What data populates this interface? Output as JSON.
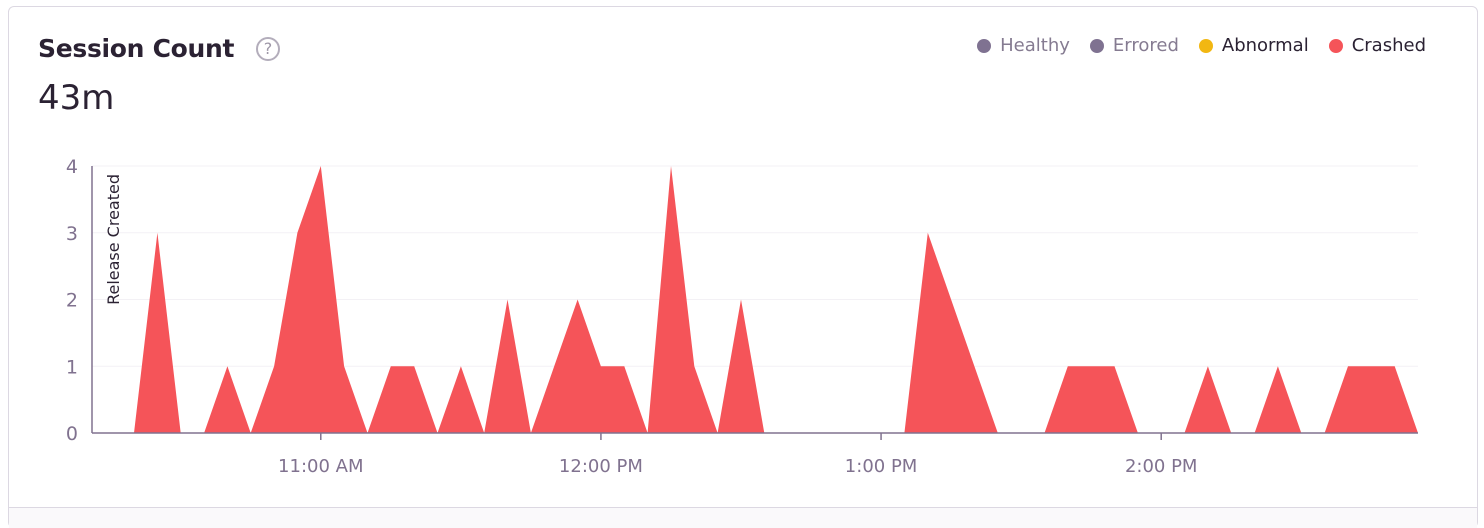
{
  "header": {
    "title": "Session Count",
    "help_icon": "question-circle-icon",
    "total": "43m"
  },
  "legend": [
    {
      "label": "Healthy",
      "color": "#7f7291",
      "active": false
    },
    {
      "label": "Errored",
      "color": "#7f7291",
      "active": false
    },
    {
      "label": "Abnormal",
      "color": "#f2b712",
      "active": true
    },
    {
      "label": "Crashed",
      "color": "#f55459",
      "active": true
    }
  ],
  "chart_data": {
    "type": "area",
    "title": "Session Count",
    "xlabel": "",
    "ylabel": "",
    "ylim": [
      0,
      4
    ],
    "yticks": [
      "0",
      "1",
      "2",
      "3",
      "4"
    ],
    "xticks": [
      {
        "time": "11:00",
        "label": "11:00 AM"
      },
      {
        "time": "12:00",
        "label": "12:00 PM"
      },
      {
        "time": "13:00",
        "label": "1:00 PM"
      },
      {
        "time": "14:00",
        "label": "2:00 PM"
      }
    ],
    "xlim": [
      "10:11",
      "14:55"
    ],
    "grid": true,
    "legend_position": "top-right",
    "annotations": [
      {
        "time": "10:11",
        "label": "Release Created"
      }
    ],
    "x": [
      "10:20",
      "10:25",
      "10:30",
      "10:35",
      "10:40",
      "10:45",
      "10:50",
      "10:55",
      "11:00",
      "11:05",
      "11:10",
      "11:15",
      "11:20",
      "11:25",
      "11:30",
      "11:35",
      "11:40",
      "11:45",
      "11:50",
      "11:55",
      "12:00",
      "12:05",
      "12:10",
      "12:15",
      "12:20",
      "12:25",
      "12:30",
      "12:35",
      "12:40",
      "12:45",
      "12:50",
      "12:55",
      "13:00",
      "13:05",
      "13:10",
      "13:15",
      "13:20",
      "13:25",
      "13:30",
      "13:35",
      "13:40",
      "13:45",
      "13:50",
      "13:55",
      "14:00",
      "14:05",
      "14:10",
      "14:15",
      "14:20",
      "14:25",
      "14:30",
      "14:35",
      "14:40",
      "14:45",
      "14:50",
      "14:55"
    ],
    "series": [
      {
        "name": "Crashed",
        "color": "#f55459",
        "values": [
          0,
          3,
          0,
          0,
          1,
          0,
          1,
          3,
          4,
          1,
          0,
          1,
          1,
          0,
          1,
          0,
          2,
          0,
          1,
          2,
          1,
          1,
          0,
          4,
          1,
          0,
          2,
          0,
          0,
          0,
          0,
          0,
          0,
          0,
          3,
          2,
          1,
          0,
          0,
          0,
          1,
          1,
          1,
          0,
          0,
          0,
          1,
          0,
          0,
          1,
          0,
          0,
          1,
          1,
          1,
          0
        ]
      }
    ]
  }
}
